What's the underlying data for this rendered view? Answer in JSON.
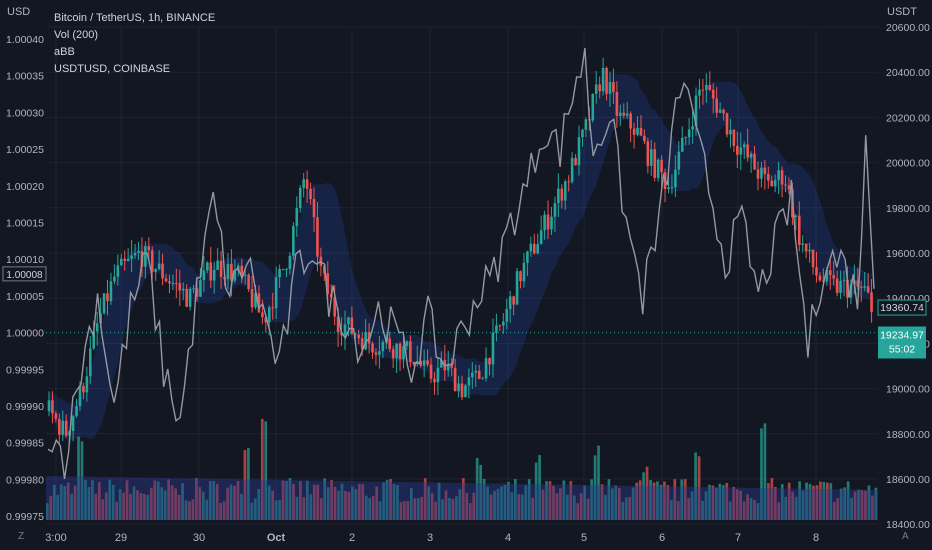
{
  "legend": {
    "symbol": "Bitcoin / TetherUS, 1h, BINANCE",
    "vol": "Vol (200)",
    "abb": "aBB",
    "compare": "USDTUSD, COINBASE"
  },
  "left_unit": "USD",
  "right_unit": "USDT",
  "corner_left": "Z",
  "corner_right": "A",
  "colors": {
    "background": "#131722",
    "up": "#26a69a",
    "down": "#ef5350",
    "usdt_line": "#9598a1",
    "volume_ma": "#2b3a8a",
    "band": "#2962ff",
    "grid": "#1f2330",
    "text": "#d1d4dc"
  },
  "chart_data": {
    "type": "candlestick",
    "title": "Bitcoin / TetherUS, 1h, BINANCE",
    "x_ticks": [
      "3:00",
      "29",
      "30",
      "Oct",
      "2",
      "3",
      "4",
      "5",
      "6",
      "7",
      "8"
    ],
    "left_axis": {
      "label": "USD",
      "ticks": [
        "1.00040",
        "1.00035",
        "1.00030",
        "1.00025",
        "1.00020",
        "1.00015",
        "1.00010",
        "1.00005",
        "1.00000",
        "0.99995",
        "0.99990",
        "0.99985",
        "0.99980",
        "0.99975"
      ],
      "range": [
        0.99975,
        1.0004
      ]
    },
    "right_axis": {
      "label": "USDT",
      "ticks": [
        "20600.00",
        "20400.00",
        "20200.00",
        "20000.00",
        "19800.00",
        "19600.00",
        "19400.00",
        "19200.00",
        "19000.00",
        "18800.00",
        "18600.00",
        "18400.00"
      ],
      "range": [
        18400,
        20600
      ]
    },
    "price_labels": {
      "usdtusd_last": "1.00008",
      "band_value": "19360.74",
      "btc_last": "19234.97",
      "countdown": "55:02"
    },
    "btc_close_anchors": [
      [
        0,
        18900
      ],
      [
        2,
        18800
      ],
      [
        4,
        19000
      ],
      [
        6,
        19300
      ],
      [
        8,
        19500
      ],
      [
        11,
        19600
      ],
      [
        14,
        19500
      ],
      [
        17,
        19400
      ],
      [
        20,
        19550
      ],
      [
        23,
        19500
      ],
      [
        26,
        19300
      ],
      [
        29,
        19600
      ],
      [
        31,
        19950
      ],
      [
        33,
        19500
      ],
      [
        35,
        19300
      ],
      [
        37,
        19250
      ],
      [
        39,
        19200
      ],
      [
        41,
        19200
      ],
      [
        44,
        19150
      ],
      [
        46,
        19050
      ],
      [
        48,
        19100
      ],
      [
        50,
        19000
      ],
      [
        52,
        19050
      ],
      [
        55,
        19300
      ],
      [
        57,
        19500
      ],
      [
        59,
        19650
      ],
      [
        61,
        19800
      ],
      [
        63,
        19950
      ],
      [
        65,
        20150
      ],
      [
        67,
        20400
      ],
      [
        69,
        20200
      ],
      [
        71,
        20150
      ],
      [
        73,
        20000
      ],
      [
        75,
        19900
      ],
      [
        77,
        20100
      ],
      [
        79,
        20350
      ],
      [
        81,
        20250
      ],
      [
        83,
        20100
      ],
      [
        85,
        20000
      ],
      [
        87,
        19900
      ],
      [
        89,
        19950
      ],
      [
        91,
        19650
      ],
      [
        93,
        19500
      ],
      [
        95,
        19450
      ],
      [
        97,
        19450
      ],
      [
        99,
        19430
      ],
      [
        100,
        19235
      ]
    ],
    "usdtusd_anchors": [
      [
        0,
        0.99987
      ],
      [
        2,
        0.99983
      ],
      [
        4,
        0.99995
      ],
      [
        6,
        1.00005
      ],
      [
        8,
        0.9999
      ],
      [
        10,
        1.00003
      ],
      [
        12,
        1.0001
      ],
      [
        14,
        0.99995
      ],
      [
        16,
        0.99988
      ],
      [
        18,
        1.00005
      ],
      [
        20,
        1.00018
      ],
      [
        22,
        1.00005
      ],
      [
        24,
        1.0001
      ],
      [
        26,
        1.00003
      ],
      [
        28,
        0.99995
      ],
      [
        30,
        1.00008
      ],
      [
        32,
        1.00012
      ],
      [
        34,
        1.00005
      ],
      [
        36,
        1.00002
      ],
      [
        38,
        0.99998
      ],
      [
        40,
        1.00003
      ],
      [
        42,
        1.0
      ],
      [
        44,
        0.99995
      ],
      [
        46,
        1.00002
      ],
      [
        48,
        0.99995
      ],
      [
        50,
        1.0
      ],
      [
        52,
        1.00005
      ],
      [
        54,
        1.00008
      ],
      [
        56,
        1.00015
      ],
      [
        58,
        1.0002
      ],
      [
        60,
        1.00028
      ],
      [
        62,
        1.00025
      ],
      [
        64,
        1.00035
      ],
      [
        65,
        1.00037
      ],
      [
        66,
        1.00025
      ],
      [
        68,
        1.0003
      ],
      [
        70,
        1.00015
      ],
      [
        72,
        1.00005
      ],
      [
        74,
        1.00015
      ],
      [
        76,
        1.0003
      ],
      [
        77,
        1.00035
      ],
      [
        78,
        1.00028
      ],
      [
        80,
        1.0002
      ],
      [
        82,
        1.0001
      ],
      [
        84,
        1.00015
      ],
      [
        86,
        1.00005
      ],
      [
        88,
        1.00012
      ],
      [
        90,
        1.00018
      ],
      [
        92,
        0.99998
      ],
      [
        94,
        1.0001
      ],
      [
        96,
        1.0001
      ],
      [
        98,
        1.00005
      ],
      [
        99,
        1.00025
      ],
      [
        100,
        1.00008
      ]
    ],
    "volume_spikes": [
      [
        4,
        0.55
      ],
      [
        24,
        0.45
      ],
      [
        26,
        0.7
      ],
      [
        52,
        0.35
      ],
      [
        59,
        0.4
      ],
      [
        66,
        0.45
      ],
      [
        72,
        0.3
      ],
      [
        78,
        0.45
      ],
      [
        86,
        0.65
      ]
    ]
  }
}
